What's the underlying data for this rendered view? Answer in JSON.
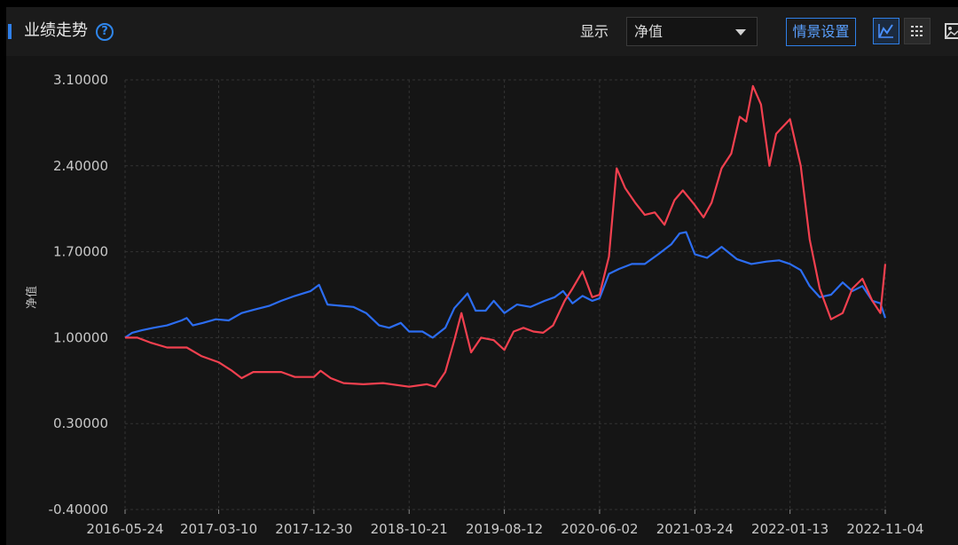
{
  "header": {
    "title": "业绩走势",
    "show_label": "显示",
    "select_value": "净值",
    "scene_button": "情景设置",
    "icons": [
      "help-icon",
      "line-chart-icon",
      "grid-icon",
      "image-icon"
    ]
  },
  "colors": {
    "background": "#151515",
    "accent": "#2f7fe8",
    "series_blue": "#2c6df2",
    "series_red": "#f2404f",
    "grid": "#333333",
    "tick_text": "#c8c8c8"
  },
  "chart_data": {
    "type": "line",
    "ylabel": "净值",
    "xlabel": "",
    "ylim": [
      -0.4,
      3.1
    ],
    "yticks": [
      "3.10000",
      "2.40000",
      "1.70000",
      "1.00000",
      "0.30000",
      "-0.40000"
    ],
    "xticks": [
      "2016-05-24",
      "2017-03-10",
      "2017-12-30",
      "2018-10-21",
      "2019-08-12",
      "2020-06-02",
      "2021-03-24",
      "2022-01-13",
      "2022-11-04"
    ],
    "grid": true,
    "series": [
      {
        "color": "#2c6df2",
        "points": [
          [
            "2016-05-24",
            1.0
          ],
          [
            "2016-06-15",
            1.04
          ],
          [
            "2016-07-15",
            1.06
          ],
          [
            "2016-08-20",
            1.08
          ],
          [
            "2016-10-01",
            1.1
          ],
          [
            "2016-11-15",
            1.14
          ],
          [
            "2016-12-01",
            1.16
          ],
          [
            "2016-12-20",
            1.1
          ],
          [
            "2017-01-20",
            1.12
          ],
          [
            "2017-03-01",
            1.15
          ],
          [
            "2017-04-10",
            1.14
          ],
          [
            "2017-05-20",
            1.2
          ],
          [
            "2017-07-01",
            1.23
          ],
          [
            "2017-08-15",
            1.26
          ],
          [
            "2017-09-20",
            1.3
          ],
          [
            "2017-11-01",
            1.34
          ],
          [
            "2017-12-20",
            1.38
          ],
          [
            "2018-01-15",
            1.43
          ],
          [
            "2018-02-10",
            1.27
          ],
          [
            "2018-03-20",
            1.26
          ],
          [
            "2018-05-01",
            1.25
          ],
          [
            "2018-06-10",
            1.2
          ],
          [
            "2018-07-20",
            1.1
          ],
          [
            "2018-08-20",
            1.08
          ],
          [
            "2018-09-25",
            1.12
          ],
          [
            "2018-10-21",
            1.05
          ],
          [
            "2018-12-01",
            1.05
          ],
          [
            "2019-01-02",
            1.0
          ],
          [
            "2019-02-10",
            1.08
          ],
          [
            "2019-03-10",
            1.24
          ],
          [
            "2019-04-20",
            1.36
          ],
          [
            "2019-05-15",
            1.22
          ],
          [
            "2019-06-15",
            1.22
          ],
          [
            "2019-07-10",
            1.3
          ],
          [
            "2019-08-12",
            1.2
          ],
          [
            "2019-09-20",
            1.27
          ],
          [
            "2019-11-01",
            1.25
          ],
          [
            "2019-12-15",
            1.3
          ],
          [
            "2020-01-15",
            1.33
          ],
          [
            "2020-02-10",
            1.38
          ],
          [
            "2020-03-10",
            1.28
          ],
          [
            "2020-04-10",
            1.34
          ],
          [
            "2020-05-10",
            1.3
          ],
          [
            "2020-06-02",
            1.32
          ],
          [
            "2020-07-01",
            1.52
          ],
          [
            "2020-08-01",
            1.56
          ],
          [
            "2020-09-10",
            1.6
          ],
          [
            "2020-10-20",
            1.6
          ],
          [
            "2020-12-01",
            1.68
          ],
          [
            "2021-01-10",
            1.76
          ],
          [
            "2021-02-05",
            1.85
          ],
          [
            "2021-02-25",
            1.86
          ],
          [
            "2021-03-24",
            1.68
          ],
          [
            "2021-05-01",
            1.65
          ],
          [
            "2021-06-15",
            1.74
          ],
          [
            "2021-08-01",
            1.64
          ],
          [
            "2021-09-15",
            1.6
          ],
          [
            "2021-11-01",
            1.62
          ],
          [
            "2021-12-10",
            1.63
          ],
          [
            "2022-01-13",
            1.6
          ],
          [
            "2022-02-15",
            1.55
          ],
          [
            "2022-03-15",
            1.42
          ],
          [
            "2022-04-15",
            1.33
          ],
          [
            "2022-05-20",
            1.35
          ],
          [
            "2022-06-25",
            1.45
          ],
          [
            "2022-07-25",
            1.38
          ],
          [
            "2022-08-25",
            1.42
          ],
          [
            "2022-09-25",
            1.3
          ],
          [
            "2022-10-20",
            1.28
          ],
          [
            "2022-11-04",
            1.16
          ]
        ]
      },
      {
        "color": "#f2404f",
        "points": [
          [
            "2016-05-24",
            1.0
          ],
          [
            "2016-07-01",
            1.0
          ],
          [
            "2016-08-10",
            0.96
          ],
          [
            "2016-10-01",
            0.92
          ],
          [
            "2016-12-01",
            0.92
          ],
          [
            "2017-01-15",
            0.85
          ],
          [
            "2017-03-10",
            0.8
          ],
          [
            "2017-04-20",
            0.73
          ],
          [
            "2017-05-20",
            0.67
          ],
          [
            "2017-06-25",
            0.72
          ],
          [
            "2017-08-10",
            0.72
          ],
          [
            "2017-09-20",
            0.72
          ],
          [
            "2017-11-01",
            0.68
          ],
          [
            "2017-12-30",
            0.68
          ],
          [
            "2018-01-20",
            0.73
          ],
          [
            "2018-02-20",
            0.67
          ],
          [
            "2018-04-01",
            0.63
          ],
          [
            "2018-06-01",
            0.62
          ],
          [
            "2018-08-01",
            0.63
          ],
          [
            "2018-10-21",
            0.6
          ],
          [
            "2018-12-15",
            0.62
          ],
          [
            "2019-01-10",
            0.6
          ],
          [
            "2019-02-10",
            0.72
          ],
          [
            "2019-03-10",
            0.98
          ],
          [
            "2019-04-01",
            1.2
          ],
          [
            "2019-05-01",
            0.88
          ],
          [
            "2019-06-01",
            1.0
          ],
          [
            "2019-07-10",
            0.98
          ],
          [
            "2019-08-12",
            0.9
          ],
          [
            "2019-09-10",
            1.05
          ],
          [
            "2019-10-10",
            1.08
          ],
          [
            "2019-11-10",
            1.05
          ],
          [
            "2019-12-10",
            1.04
          ],
          [
            "2020-01-10",
            1.1
          ],
          [
            "2020-02-15",
            1.3
          ],
          [
            "2020-03-10",
            1.4
          ],
          [
            "2020-04-10",
            1.54
          ],
          [
            "2020-05-10",
            1.33
          ],
          [
            "2020-06-02",
            1.35
          ],
          [
            "2020-07-01",
            1.66
          ],
          [
            "2020-07-25",
            2.38
          ],
          [
            "2020-08-20",
            2.22
          ],
          [
            "2020-09-20",
            2.1
          ],
          [
            "2020-10-20",
            2.0
          ],
          [
            "2020-11-20",
            2.02
          ],
          [
            "2020-12-20",
            1.92
          ],
          [
            "2021-01-20",
            2.12
          ],
          [
            "2021-02-15",
            2.2
          ],
          [
            "2021-03-24",
            2.08
          ],
          [
            "2021-04-20",
            1.98
          ],
          [
            "2021-05-15",
            2.1
          ],
          [
            "2021-06-15",
            2.38
          ],
          [
            "2021-07-15",
            2.5
          ],
          [
            "2021-08-10",
            2.8
          ],
          [
            "2021-08-30",
            2.76
          ],
          [
            "2021-09-20",
            3.05
          ],
          [
            "2021-10-15",
            2.9
          ],
          [
            "2021-11-10",
            2.4
          ],
          [
            "2021-12-01",
            2.66
          ],
          [
            "2022-01-13",
            2.78
          ],
          [
            "2022-02-15",
            2.4
          ],
          [
            "2022-03-15",
            1.8
          ],
          [
            "2022-04-15",
            1.4
          ],
          [
            "2022-05-20",
            1.15
          ],
          [
            "2022-06-25",
            1.2
          ],
          [
            "2022-07-25",
            1.4
          ],
          [
            "2022-08-25",
            1.48
          ],
          [
            "2022-09-25",
            1.3
          ],
          [
            "2022-10-20",
            1.2
          ],
          [
            "2022-11-04",
            1.6
          ]
        ]
      }
    ]
  }
}
